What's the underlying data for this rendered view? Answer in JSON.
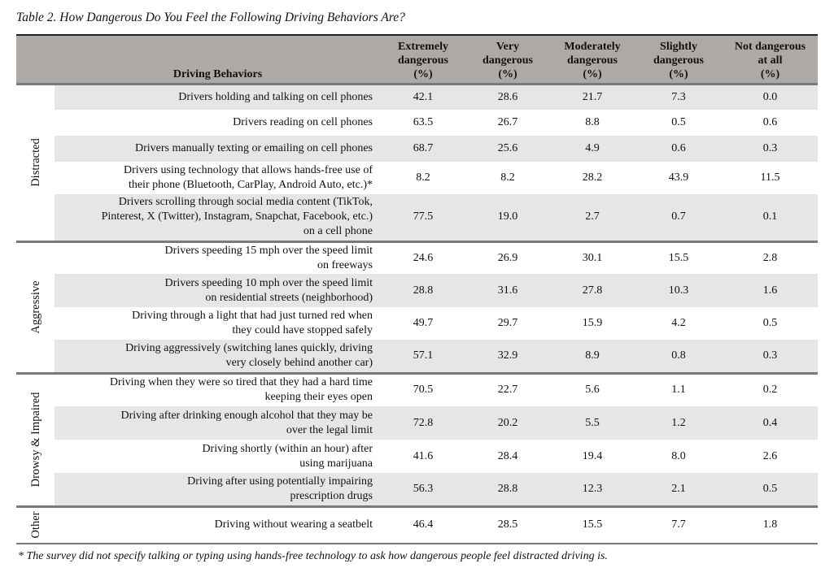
{
  "title": "Table 2. How Dangerous Do You Feel the Following Driving Behaviors Are?",
  "headers": {
    "behavior": "Driving Behaviors",
    "columns": [
      [
        "Extremely",
        "dangerous",
        "(%)"
      ],
      [
        "Very",
        "dangerous",
        "(%)"
      ],
      [
        "Moderately",
        "dangerous",
        "(%)"
      ],
      [
        "Slightly",
        "dangerous",
        "(%)"
      ],
      [
        "Not dangerous",
        "at all",
        "(%)"
      ]
    ]
  },
  "colors": {
    "header_bg": "#aca9a7",
    "row_shade": "#e6e6e6",
    "separator": "#7a7a7a"
  },
  "groups": [
    {
      "label": "Distracted",
      "rows": [
        {
          "behavior": [
            "Drivers holding and talking on cell phones"
          ],
          "values": [
            "42.1",
            "28.6",
            "21.7",
            "7.3",
            "0.0"
          ],
          "shaded": true
        },
        {
          "behavior": [
            "Drivers reading on cell phones"
          ],
          "values": [
            "63.5",
            "26.7",
            "8.8",
            "0.5",
            "0.6"
          ],
          "shaded": false
        },
        {
          "behavior": [
            "Drivers manually texting or emailing on cell phones"
          ],
          "values": [
            "68.7",
            "25.6",
            "4.9",
            "0.6",
            "0.3"
          ],
          "shaded": true
        },
        {
          "behavior": [
            "Drivers using technology that allows hands-free use of",
            "their phone (Bluetooth, CarPlay, Android Auto, etc.)*"
          ],
          "values": [
            "8.2",
            "8.2",
            "28.2",
            "43.9",
            "11.5"
          ],
          "shaded": false
        },
        {
          "behavior": [
            "Drivers scrolling through social media content (TikTok,",
            "Pinterest, X (Twitter), Instagram, Snapchat, Facebook, etc.)",
            "on a cell phone"
          ],
          "values": [
            "77.5",
            "19.0",
            "2.7",
            "0.7",
            "0.1"
          ],
          "shaded": true
        }
      ]
    },
    {
      "label": "Aggressive",
      "rows": [
        {
          "behavior": [
            "Drivers speeding 15 mph over the speed limit",
            "on freeways"
          ],
          "values": [
            "24.6",
            "26.9",
            "30.1",
            "15.5",
            "2.8"
          ],
          "shaded": false
        },
        {
          "behavior": [
            "Drivers speeding 10 mph over the speed limit",
            "on residential streets (neighborhood)"
          ],
          "values": [
            "28.8",
            "31.6",
            "27.8",
            "10.3",
            "1.6"
          ],
          "shaded": true
        },
        {
          "behavior": [
            "Driving through a light that had just turned red when",
            "they could have stopped safely"
          ],
          "values": [
            "49.7",
            "29.7",
            "15.9",
            "4.2",
            "0.5"
          ],
          "shaded": false
        },
        {
          "behavior": [
            "Driving aggressively (switching lanes quickly, driving",
            "very closely behind another car)"
          ],
          "values": [
            "57.1",
            "32.9",
            "8.9",
            "0.8",
            "0.3"
          ],
          "shaded": true
        }
      ]
    },
    {
      "label": "Drowsy & Impaired",
      "rows": [
        {
          "behavior": [
            "Driving when they were so tired that they had a hard time",
            "keeping their eyes open"
          ],
          "values": [
            "70.5",
            "22.7",
            "5.6",
            "1.1",
            "0.2"
          ],
          "shaded": false
        },
        {
          "behavior": [
            "Driving after drinking enough alcohol that they may be",
            "over the legal limit"
          ],
          "values": [
            "72.8",
            "20.2",
            "5.5",
            "1.2",
            "0.4"
          ],
          "shaded": true
        },
        {
          "behavior": [
            "Driving shortly (within an hour) after",
            "using marijuana"
          ],
          "values": [
            "41.6",
            "28.4",
            "19.4",
            "8.0",
            "2.6"
          ],
          "shaded": false
        },
        {
          "behavior": [
            "Driving after using potentially impairing",
            "prescription drugs"
          ],
          "values": [
            "56.3",
            "28.8",
            "12.3",
            "2.1",
            "0.5"
          ],
          "shaded": true
        }
      ]
    },
    {
      "label": "Other",
      "rows": [
        {
          "behavior": [
            "Driving without wearing a seatbelt"
          ],
          "values": [
            "46.4",
            "28.5",
            "15.5",
            "7.7",
            "1.8"
          ],
          "shaded": false
        }
      ]
    }
  ],
  "footnote": "* The survey did not specify talking or typing using hands-free technology to ask how dangerous people feel distracted driving is."
}
